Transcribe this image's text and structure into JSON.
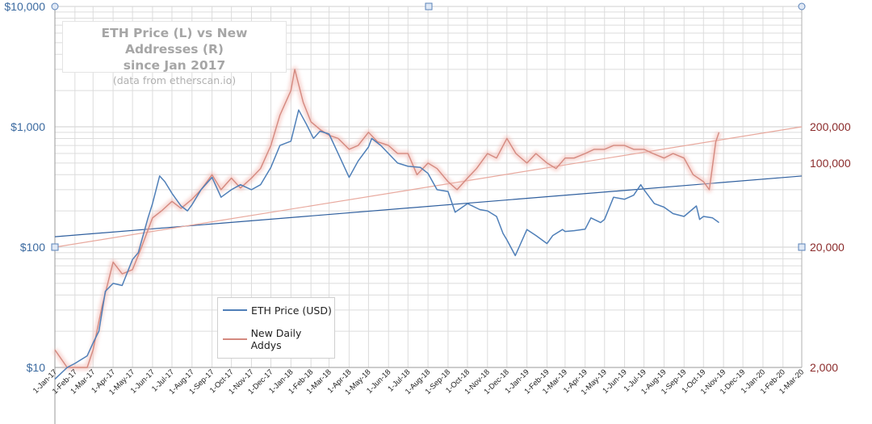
{
  "chart_data": {
    "type": "line",
    "title": "ETH Price (L) vs New Addresses (R)",
    "subtitle": "since Jan 2017",
    "note": "(data from etherscan.io)",
    "x_tick_labels": [
      "1-Jan-17",
      "1-Feb-17",
      "1-Mar-17",
      "1-Apr-17",
      "1-May-17",
      "1-Jun-17",
      "1-Jul-17",
      "1-Aug-17",
      "1-Sep-17",
      "1-Oct-17",
      "1-Nov-17",
      "1-Dec-17",
      "1-Jan-18",
      "1-Feb-18",
      "1-Mar-18",
      "1-Apr-18",
      "1-May-18",
      "1-Jun-18",
      "1-Jul-18",
      "1-Aug-18",
      "1-Sep-18",
      "1-Oct-18",
      "1-Nov-18",
      "1-Dec-18",
      "1-Jan-19",
      "1-Feb-19",
      "1-Mar-19",
      "1-Apr-19",
      "1-May-19",
      "1-Jun-19",
      "1-Jul-19",
      "1-Aug-19",
      "1-Sep-19",
      "1-Oct-19",
      "1-Nov-19",
      "1-Dec-19",
      "1-Jan-20",
      "1-Feb-20",
      "1-Mar-20"
    ],
    "y_left": {
      "scale": "log",
      "range": [
        10,
        10000
      ],
      "tick_labels": [
        "$10",
        "$100",
        "$1,000",
        "$10,000"
      ],
      "tick_values": [
        10,
        100,
        1000,
        10000
      ]
    },
    "y_right": {
      "scale": "log",
      "range": [
        2000,
        2000000
      ],
      "tick_labels": [
        "2,000",
        "20,000",
        "100,000",
        "200,000"
      ],
      "tick_values": [
        2000,
        20000,
        100000,
        200000
      ]
    },
    "series": [
      {
        "name": "ETH Price (USD)",
        "axis": "left",
        "color": "#4f7fb8",
        "dates": [
          "2017-01-01",
          "2017-01-20",
          "2017-02-01",
          "2017-02-20",
          "2017-03-01",
          "2017-03-10",
          "2017-03-20",
          "2017-04-01",
          "2017-04-15",
          "2017-05-01",
          "2017-05-10",
          "2017-05-25",
          "2017-06-01",
          "2017-06-12",
          "2017-06-20",
          "2017-07-01",
          "2017-07-15",
          "2017-07-25",
          "2017-08-01",
          "2017-08-15",
          "2017-09-01",
          "2017-09-15",
          "2017-10-01",
          "2017-10-15",
          "2017-11-01",
          "2017-11-15",
          "2017-12-01",
          "2017-12-15",
          "2018-01-01",
          "2018-01-13",
          "2018-01-25",
          "2018-02-05",
          "2018-02-15",
          "2018-03-01",
          "2018-03-15",
          "2018-04-01",
          "2018-04-15",
          "2018-05-01",
          "2018-05-06",
          "2018-05-20",
          "2018-06-01",
          "2018-06-15",
          "2018-07-01",
          "2018-07-20",
          "2018-08-01",
          "2018-08-15",
          "2018-09-01",
          "2018-09-12",
          "2018-10-01",
          "2018-10-20",
          "2018-11-01",
          "2018-11-15",
          "2018-11-25",
          "2018-12-01",
          "2018-12-14",
          "2019-01-01",
          "2019-01-15",
          "2019-02-01",
          "2019-02-10",
          "2019-02-25",
          "2019-03-01",
          "2019-03-15",
          "2019-04-01",
          "2019-04-10",
          "2019-04-25",
          "2019-05-01",
          "2019-05-15",
          "2019-06-01",
          "2019-06-15",
          "2019-06-26",
          "2019-07-01",
          "2019-07-17",
          "2019-08-01",
          "2019-08-15",
          "2019-09-01",
          "2019-09-20",
          "2019-09-25",
          "2019-10-01",
          "2019-10-15",
          "2019-10-25"
        ],
        "values": [
          8,
          10,
          10.8,
          12.5,
          16,
          20,
          43,
          50,
          48,
          79,
          90,
          175,
          230,
          390,
          350,
          280,
          220,
          200,
          225,
          300,
          380,
          260,
          300,
          330,
          300,
          330,
          460,
          700,
          760,
          1380,
          1050,
          800,
          920,
          870,
          600,
          380,
          520,
          680,
          800,
          700,
          600,
          500,
          470,
          460,
          410,
          300,
          290,
          195,
          230,
          205,
          200,
          180,
          130,
          115,
          85,
          140,
          125,
          107,
          125,
          140,
          135,
          137,
          141,
          175,
          160,
          170,
          260,
          250,
          270,
          330,
          300,
          230,
          215,
          190,
          180,
          220,
          170,
          180,
          175,
          160
        ]
      },
      {
        "name": "New Daily Addys",
        "axis": "right",
        "color": "#d4897f",
        "dates": [
          "2017-01-01",
          "2017-01-20",
          "2017-02-01",
          "2017-02-20",
          "2017-03-01",
          "2017-03-15",
          "2017-04-01",
          "2017-04-15",
          "2017-05-01",
          "2017-05-15",
          "2017-06-01",
          "2017-06-15",
          "2017-07-01",
          "2017-07-15",
          "2017-08-01",
          "2017-08-15",
          "2017-09-01",
          "2017-09-15",
          "2017-10-01",
          "2017-10-15",
          "2017-11-01",
          "2017-11-15",
          "2017-12-01",
          "2017-12-15",
          "2018-01-01",
          "2018-01-07",
          "2018-01-20",
          "2018-02-01",
          "2018-02-15",
          "2018-03-01",
          "2018-03-15",
          "2018-04-01",
          "2018-04-15",
          "2018-05-01",
          "2018-05-15",
          "2018-06-01",
          "2018-06-15",
          "2018-07-01",
          "2018-07-15",
          "2018-08-01",
          "2018-08-15",
          "2018-09-01",
          "2018-09-15",
          "2018-10-01",
          "2018-10-15",
          "2018-11-01",
          "2018-11-15",
          "2018-12-01",
          "2018-12-15",
          "2019-01-01",
          "2019-01-15",
          "2019-02-01",
          "2019-02-15",
          "2019-03-01",
          "2019-03-15",
          "2019-04-01",
          "2019-04-15",
          "2019-05-01",
          "2019-05-15",
          "2019-06-01",
          "2019-06-15",
          "2019-07-01",
          "2019-07-15",
          "2019-08-01",
          "2019-08-15",
          "2019-09-01",
          "2019-09-15",
          "2019-10-01",
          "2019-10-10",
          "2019-10-20",
          "2019-10-25"
        ],
        "values": [
          2800,
          2000,
          2000,
          2000,
          2800,
          6500,
          15000,
          12000,
          13000,
          20000,
          35000,
          40000,
          48000,
          42000,
          50000,
          60000,
          80000,
          60000,
          75000,
          62000,
          75000,
          90000,
          140000,
          250000,
          400000,
          600000,
          320000,
          220000,
          190000,
          170000,
          160000,
          130000,
          140000,
          180000,
          150000,
          140000,
          120000,
          120000,
          80000,
          100000,
          90000,
          70000,
          60000,
          75000,
          90000,
          120000,
          110000,
          160000,
          120000,
          100000,
          120000,
          100000,
          90000,
          110000,
          110000,
          120000,
          130000,
          130000,
          140000,
          140000,
          130000,
          130000,
          120000,
          110000,
          120000,
          110000,
          80000,
          70000,
          60000,
          150000,
          180000
        ]
      }
    ],
    "trendlines": [
      {
        "series": "ETH Price (USD)",
        "axis": "left",
        "color": "#2f5f9e",
        "start": [
          "2017-01-01",
          122
        ],
        "end": [
          "2020-03-01",
          390
        ]
      },
      {
        "series": "New Daily Addys",
        "axis": "right",
        "color": "#e8a99e",
        "start": [
          "2017-01-01",
          20000
        ],
        "end": [
          "2020-03-01",
          200000
        ]
      }
    ],
    "legend": {
      "position": "lower-left",
      "items": [
        {
          "label": "ETH Price (USD)",
          "color": "#4f7fb8"
        },
        {
          "label": "New Daily Addys",
          "color": "#d4897f"
        }
      ]
    },
    "grid": true,
    "colors": {
      "left_axis_text": "#3b6aa0",
      "right_axis_text": "#8b2b2b",
      "grid": "#dcdcdc"
    }
  }
}
